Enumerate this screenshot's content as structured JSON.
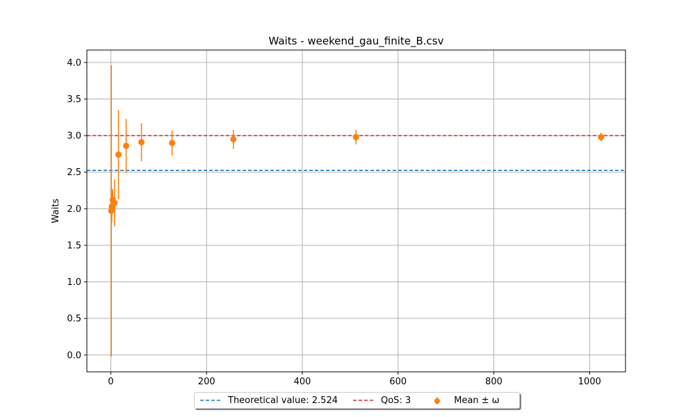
{
  "chart_data": {
    "type": "scatter",
    "title": "Waits - weekend_gau_finite_B.csv",
    "xlabel": "",
    "ylabel": "Waits",
    "xlim": [
      -50,
      1075
    ],
    "ylim": [
      -0.23,
      4.17
    ],
    "xticks": [
      0,
      200,
      400,
      600,
      800,
      1000
    ],
    "yticks": [
      0.0,
      0.5,
      1.0,
      1.5,
      2.0,
      2.5,
      3.0,
      3.5,
      4.0
    ],
    "xtick_labels": [
      "0",
      "200",
      "400",
      "600",
      "800",
      "1000"
    ],
    "ytick_labels": [
      "0.0",
      "0.5",
      "1.0",
      "1.5",
      "2.0",
      "2.5",
      "3.0",
      "3.5",
      "4.0"
    ],
    "grid": true,
    "legend_position": "bottom-center",
    "hlines": [
      {
        "name": "Theoretical value: 2.524",
        "y": 2.524,
        "color": "#1f77b4",
        "style": "dashed"
      },
      {
        "name": "QoS: 3",
        "y": 3.0,
        "color": "#d62728",
        "style": "dashed"
      }
    ],
    "series": [
      {
        "name": "Mean ± ω",
        "color": "#ff7f0e",
        "x": [
          1,
          2,
          4,
          8,
          16,
          32,
          64,
          128,
          256,
          512,
          1024
        ],
        "y": [
          1.97,
          2.03,
          2.12,
          2.08,
          2.74,
          2.86,
          2.91,
          2.9,
          2.95,
          2.98,
          2.98
        ],
        "err": [
          1.99,
          0.22,
          0.15,
          0.32,
          0.61,
          0.37,
          0.26,
          0.17,
          0.13,
          0.1,
          0.06
        ]
      }
    ]
  }
}
